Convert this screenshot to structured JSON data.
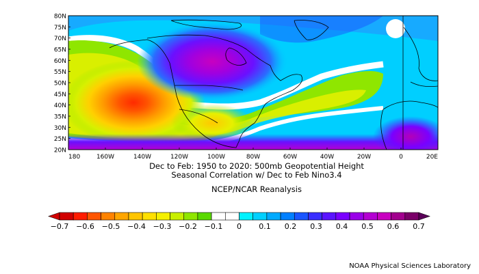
{
  "title": {
    "line1": "Dec to Feb: 1950 to 2020: 500mb Geopotential Height",
    "line2": "Seasonal Correlation w/ Dec to Feb Nino3.4",
    "dataset": "NCEP/NCAR Reanalysis"
  },
  "axes": {
    "lat_labels": [
      "80N",
      "75N",
      "70N",
      "65N",
      "60N",
      "55N",
      "50N",
      "45N",
      "40N",
      "35N",
      "30N",
      "25N",
      "20N"
    ],
    "lon_labels": [
      "180",
      "160W",
      "140W",
      "120W",
      "100W",
      "80W",
      "60W",
      "40W",
      "20W",
      "0",
      "20E"
    ]
  },
  "colorbar": {
    "labels": [
      "−0.7",
      "−0.6",
      "−0.5",
      "−0.4",
      "−0.3",
      "−0.2",
      "−0.1",
      "0",
      "0.1",
      "0.2",
      "0.3",
      "0.4",
      "0.5",
      "0.6",
      "0.7"
    ],
    "colors": [
      "#d10000",
      "#ff1c00",
      "#ff5500",
      "#ff8300",
      "#ffa600",
      "#ffc500",
      "#ffe000",
      "#f5f000",
      "#c8ef00",
      "#8fe600",
      "#5ad900",
      "#ffffff",
      "#ffffff",
      "#00f2ff",
      "#00d0ff",
      "#00aaff",
      "#0080ff",
      "#1a55ff",
      "#3a2eff",
      "#5a14ff",
      "#7a00ff",
      "#9a00e8",
      "#b400d2",
      "#c800c0",
      "#a2008e",
      "#7a0068"
    ],
    "end_left": "#d10000",
    "end_right": "#5a0058"
  },
  "credit": "NOAA Physical Sciences Laboratory"
}
